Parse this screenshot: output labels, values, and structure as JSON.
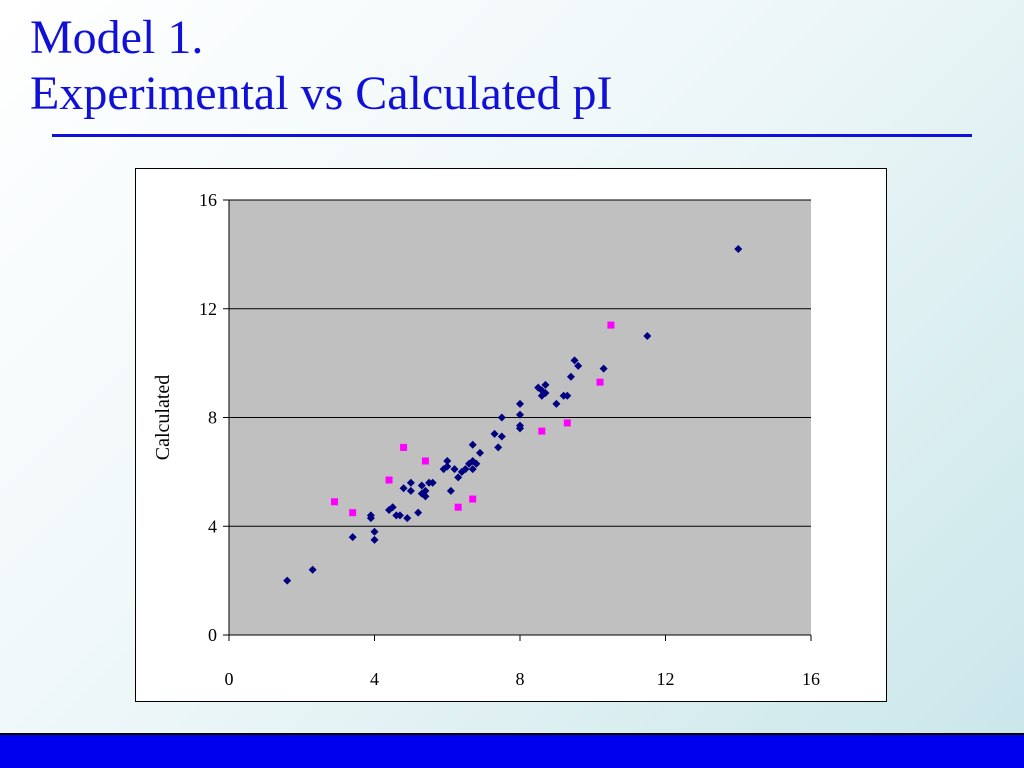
{
  "slide": {
    "title_line1": "Model 1.",
    "title_line2": "Experimental vs Calculated pI"
  },
  "colors": {
    "title": "#1010d8",
    "plot_background": "#c0c0c0",
    "series_main": "#000080",
    "series_highlight": "#ff00ff",
    "footer_bar": "#0000ee"
  },
  "chart_data": {
    "type": "scatter",
    "title": "",
    "xlabel": "",
    "ylabel": "Calculated",
    "xlim": [
      0,
      16
    ],
    "ylim": [
      0,
      16
    ],
    "x_ticks": [
      "0",
      "4",
      "8",
      "12",
      "16"
    ],
    "y_ticks": [
      "0",
      "4",
      "8",
      "12",
      "16"
    ],
    "grid": "horizontal",
    "legend": "none",
    "series": [
      {
        "color": "#000080",
        "marker": "diamond",
        "points": [
          [
            1.6,
            2.0
          ],
          [
            2.3,
            2.4
          ],
          [
            3.4,
            3.6
          ],
          [
            3.9,
            4.3
          ],
          [
            3.9,
            4.4
          ],
          [
            4.0,
            3.5
          ],
          [
            4.0,
            3.8
          ],
          [
            4.4,
            4.6
          ],
          [
            4.5,
            4.7
          ],
          [
            4.6,
            4.4
          ],
          [
            4.7,
            4.4
          ],
          [
            4.8,
            5.4
          ],
          [
            4.9,
            4.3
          ],
          [
            5.0,
            5.3
          ],
          [
            5.0,
            5.6
          ],
          [
            5.2,
            4.5
          ],
          [
            5.3,
            5.5
          ],
          [
            5.3,
            5.2
          ],
          [
            5.4,
            5.1
          ],
          [
            5.4,
            5.3
          ],
          [
            5.5,
            5.6
          ],
          [
            5.6,
            5.6
          ],
          [
            5.9,
            6.1
          ],
          [
            6.0,
            6.2
          ],
          [
            6.0,
            6.4
          ],
          [
            6.1,
            5.3
          ],
          [
            6.2,
            6.1
          ],
          [
            6.3,
            5.8
          ],
          [
            6.4,
            6.0
          ],
          [
            6.5,
            6.1
          ],
          [
            6.6,
            6.3
          ],
          [
            6.7,
            6.4
          ],
          [
            6.7,
            7.0
          ],
          [
            6.7,
            6.1
          ],
          [
            6.8,
            6.3
          ],
          [
            6.9,
            6.7
          ],
          [
            7.3,
            7.4
          ],
          [
            7.4,
            6.9
          ],
          [
            7.5,
            7.3
          ],
          [
            7.5,
            8.0
          ],
          [
            8.0,
            7.6
          ],
          [
            8.0,
            7.7
          ],
          [
            8.0,
            8.1
          ],
          [
            8.0,
            8.5
          ],
          [
            8.5,
            9.1
          ],
          [
            8.6,
            8.8
          ],
          [
            8.6,
            9.0
          ],
          [
            8.7,
            9.2
          ],
          [
            8.7,
            8.9
          ],
          [
            9.0,
            8.5
          ],
          [
            9.2,
            8.8
          ],
          [
            9.3,
            8.8
          ],
          [
            9.4,
            9.5
          ],
          [
            9.5,
            10.1
          ],
          [
            9.6,
            9.9
          ],
          [
            10.3,
            9.8
          ],
          [
            11.5,
            11.0
          ],
          [
            14.0,
            14.2
          ]
        ]
      },
      {
        "color": "#ff00ff",
        "marker": "square",
        "points": [
          [
            2.9,
            4.9
          ],
          [
            3.4,
            4.5
          ],
          [
            4.4,
            5.7
          ],
          [
            4.8,
            6.9
          ],
          [
            5.4,
            6.4
          ],
          [
            6.3,
            4.7
          ],
          [
            6.7,
            5.0
          ],
          [
            8.6,
            7.5
          ],
          [
            9.3,
            7.8
          ],
          [
            10.2,
            9.3
          ],
          [
            10.5,
            11.4
          ]
        ]
      }
    ]
  }
}
